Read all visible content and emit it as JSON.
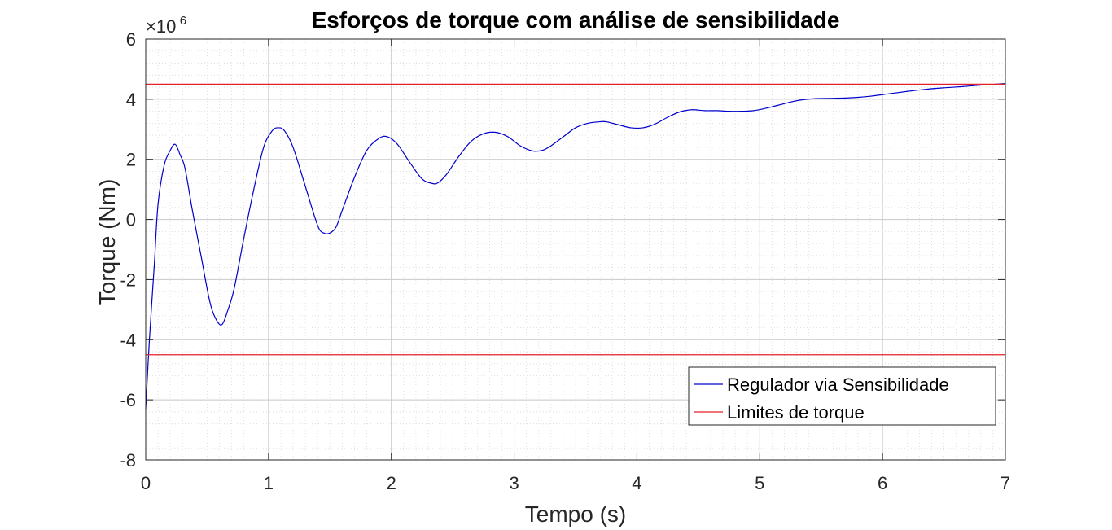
{
  "chart_data": {
    "type": "line",
    "title": "Esforços de torque com análise de sensibilidade",
    "xlabel": "Tempo (s)",
    "ylabel": "Torque (Nm)",
    "y_exponent_prefix": "×10",
    "y_exponent_power": "6",
    "xlim": [
      0,
      7
    ],
    "ylim": [
      -8,
      6
    ],
    "y_scale_factor": 1000000,
    "x_ticks": [
      0,
      1,
      2,
      3,
      4,
      5,
      6,
      7
    ],
    "x_tick_labels": [
      "0",
      "1",
      "2",
      "3",
      "4",
      "5",
      "6",
      "7"
    ],
    "y_ticks": [
      -8,
      -6,
      -4,
      -2,
      0,
      2,
      4,
      6
    ],
    "y_tick_labels": [
      "-8",
      "-6",
      "-4",
      "-2",
      "0",
      "2",
      "4",
      "6"
    ],
    "grid": true,
    "minor_grid": true,
    "legend_position": "bottom-right",
    "series": [
      {
        "name": "Regulador via Sensibilidade",
        "color": "#0000cd",
        "x": [
          0,
          0.03,
          0.07,
          0.1,
          0.15,
          0.2,
          0.24,
          0.28,
          0.32,
          0.38,
          0.45,
          0.52,
          0.57,
          0.62,
          0.67,
          0.72,
          0.8,
          0.88,
          0.96,
          1.03,
          1.08,
          1.13,
          1.2,
          1.3,
          1.4,
          1.45,
          1.5,
          1.55,
          1.6,
          1.7,
          1.8,
          1.9,
          1.97,
          2.05,
          2.15,
          2.25,
          2.33,
          2.38,
          2.45,
          2.55,
          2.65,
          2.75,
          2.85,
          2.95,
          3.05,
          3.15,
          3.23,
          3.3,
          3.4,
          3.5,
          3.6,
          3.7,
          3.75,
          3.85,
          3.95,
          4.05,
          4.15,
          4.25,
          4.35,
          4.45,
          4.55,
          4.65,
          4.75,
          4.85,
          4.95,
          5.05,
          5.15,
          5.3,
          5.45,
          5.6,
          5.75,
          5.9,
          6.05,
          6.2,
          6.35,
          6.5,
          6.65,
          6.8,
          7.0
        ],
        "y": [
          -6.3,
          -4.0,
          -1.5,
          0.5,
          1.8,
          2.3,
          2.5,
          2.15,
          1.7,
          0.3,
          -1.2,
          -2.7,
          -3.3,
          -3.5,
          -3.0,
          -2.3,
          -0.6,
          1.0,
          2.4,
          2.95,
          3.05,
          2.95,
          2.4,
          1.1,
          -0.2,
          -0.45,
          -0.45,
          -0.25,
          0.3,
          1.4,
          2.3,
          2.7,
          2.75,
          2.5,
          1.9,
          1.35,
          1.2,
          1.22,
          1.5,
          2.1,
          2.6,
          2.85,
          2.9,
          2.75,
          2.45,
          2.28,
          2.3,
          2.45,
          2.75,
          3.05,
          3.2,
          3.25,
          3.25,
          3.15,
          3.05,
          3.05,
          3.18,
          3.4,
          3.58,
          3.65,
          3.62,
          3.62,
          3.6,
          3.6,
          3.62,
          3.7,
          3.8,
          3.95,
          4.02,
          4.03,
          4.05,
          4.1,
          4.18,
          4.26,
          4.33,
          4.38,
          4.42,
          4.47,
          4.52
        ]
      },
      {
        "name": "Limites de torque",
        "color": "#e4202a",
        "upper": 4.5,
        "lower": -4.5
      }
    ]
  }
}
